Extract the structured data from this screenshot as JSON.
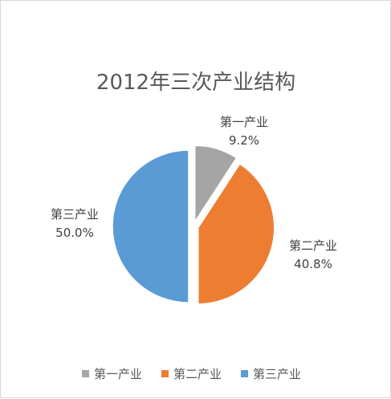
{
  "chart_data": {
    "type": "pie",
    "title": "2012年三次产业结构",
    "categories": [
      "第一产业",
      "第二产业",
      "第三产业"
    ],
    "values": [
      9.2,
      40.8,
      50.0
    ],
    "value_labels": [
      "9.2%",
      "40.8%",
      "50.0%"
    ],
    "colors": [
      "#a5a5a5",
      "#ed7d31",
      "#5b9bd5"
    ],
    "legend_position": "bottom",
    "exploded": true
  }
}
